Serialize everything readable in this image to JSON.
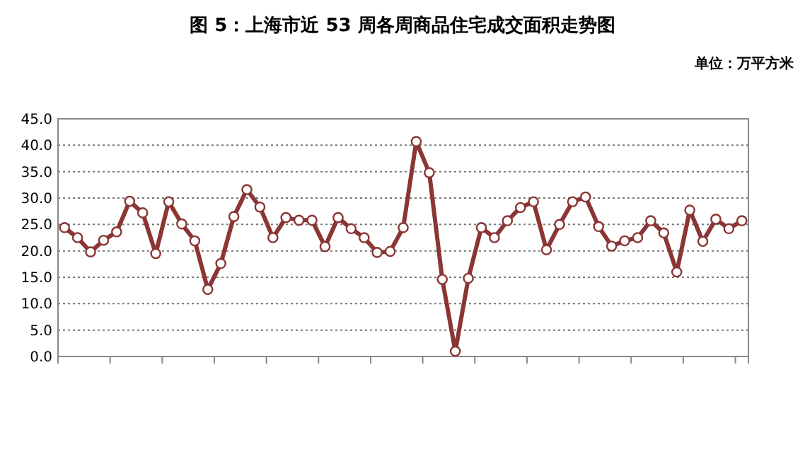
{
  "chart_data": {
    "type": "line",
    "title": "图 5：上海市近 53 周各周商品住宅成交面积走势图",
    "ylabel": "单位：万平方米",
    "categories": [
      null,
      null,
      null,
      null,
      null,
      null,
      null,
      null,
      null,
      null,
      null,
      null,
      null,
      null,
      null,
      null,
      null,
      null,
      null,
      null,
      null,
      null,
      null,
      null,
      null,
      null,
      null,
      null,
      null,
      null,
      null,
      null,
      null,
      null,
      null,
      null,
      null,
      null,
      null,
      null,
      null,
      null,
      null,
      null,
      null,
      null,
      null,
      null,
      null,
      null,
      null,
      null,
      null
    ],
    "series": [
      {
        "color": "#8b3535",
        "values": [
          24.4,
          22.5,
          19.8,
          22.0,
          23.6,
          29.4,
          27.2,
          19.5,
          29.3,
          25.1,
          21.9,
          12.7,
          17.6,
          26.5,
          31.6,
          28.3,
          22.5,
          26.3,
          25.8,
          25.8,
          20.8,
          26.3,
          24.2,
          22.5,
          19.7,
          19.9,
          24.4,
          40.7,
          34.8,
          14.6,
          1.0,
          14.8,
          24.4,
          22.5,
          25.7,
          28.2,
          29.3,
          20.2,
          25.0,
          29.3,
          30.2,
          24.6,
          20.9,
          21.9,
          22.5,
          25.7,
          23.4,
          16.0,
          27.7,
          21.8,
          26.0,
          24.2,
          25.7
        ]
      }
    ],
    "ylim": [
      0,
      45
    ],
    "yticks": [
      {
        "value": 0,
        "label": "0.0"
      },
      {
        "value": 5,
        "label": "5.0"
      },
      {
        "value": 10,
        "label": "10.0"
      },
      {
        "value": 15,
        "label": "15.0"
      },
      {
        "value": 20,
        "label": "20.0"
      },
      {
        "value": 25,
        "label": "25.0"
      },
      {
        "value": 30,
        "label": "30.0"
      },
      {
        "value": 35,
        "label": "35.0"
      },
      {
        "value": 40,
        "label": "40.0"
      },
      {
        "value": 45,
        "label": "45.0"
      }
    ],
    "grid": "y",
    "marker": "circle",
    "line_style": "solid"
  }
}
